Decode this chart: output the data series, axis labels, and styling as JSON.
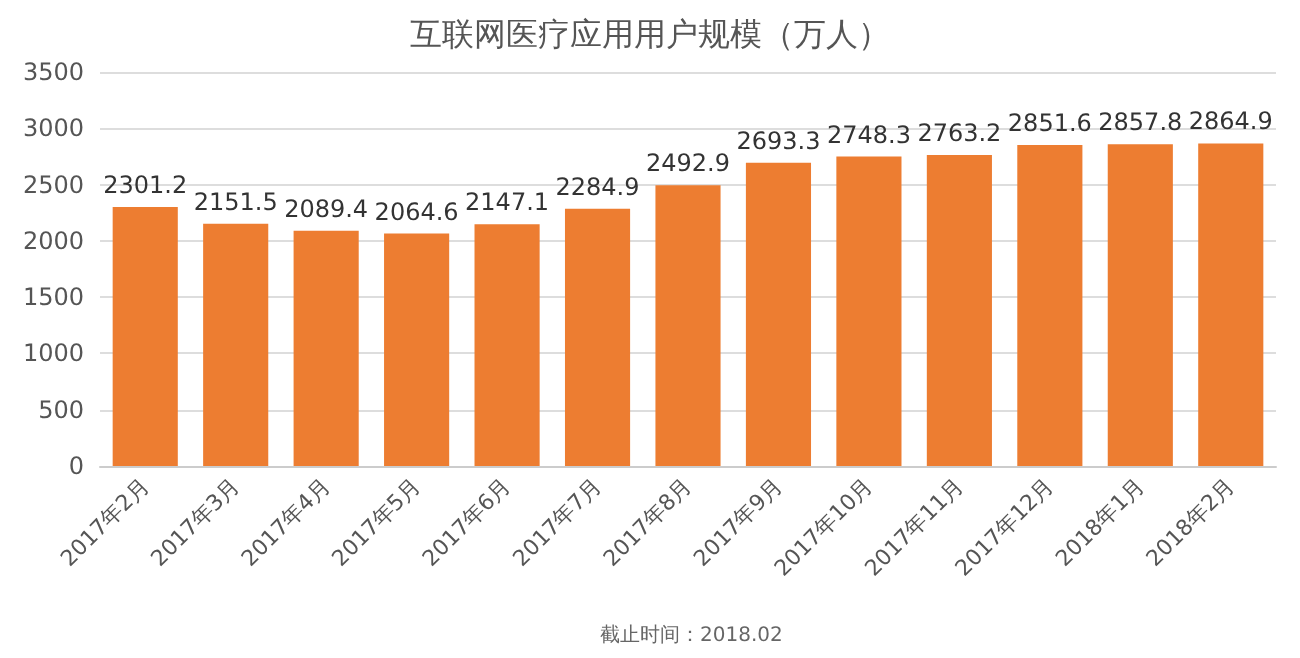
{
  "chart_data": {
    "type": "bar",
    "title": "互联网医疗应用用户规模（万人）",
    "categories": [
      "2017年2月",
      "2017年3月",
      "2017年4月",
      "2017年5月",
      "2017年6月",
      "2017年7月",
      "2017年8月",
      "2017年9月",
      "2017年10月",
      "2017年11月",
      "2017年12月",
      "2018年1月",
      "2018年2月"
    ],
    "values": [
      2301.2,
      2151.5,
      2089.4,
      2064.6,
      2147.1,
      2284.9,
      2492.9,
      2693.3,
      2748.3,
      2763.2,
      2851.6,
      2857.8,
      2864.9
    ],
    "color": "#ed7d31",
    "data_labels": true,
    "ylim": [
      0,
      3500
    ],
    "yticks": [
      0,
      500,
      1000,
      1500,
      2000,
      2500,
      3000,
      3500
    ],
    "grid": "y",
    "annotations": [
      "截止时间：2018.02"
    ]
  }
}
